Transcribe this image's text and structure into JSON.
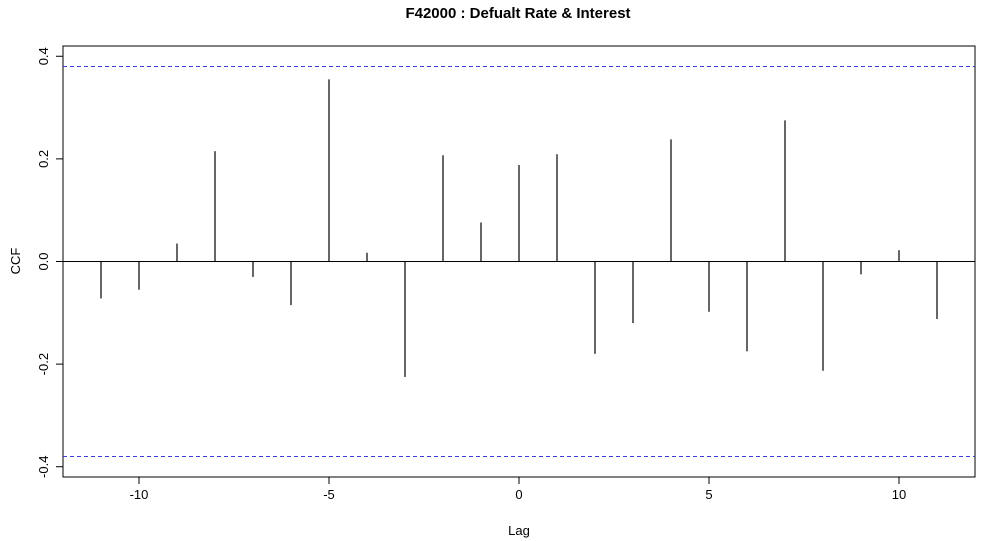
{
  "chart_data": {
    "type": "bar",
    "title": "F42000  : Defualt Rate & Interest",
    "xlabel": "Lag",
    "ylabel": "CCF",
    "xlim": [
      -12,
      12
    ],
    "ylim": [
      -0.42,
      0.42
    ],
    "x_ticks": [
      -10,
      -5,
      0,
      5,
      10
    ],
    "y_ticks": [
      -0.4,
      -0.2,
      0.0,
      0.2,
      0.4
    ],
    "x_tick_labels": [
      "-10",
      "-5",
      "0",
      "5",
      "10"
    ],
    "y_tick_labels": [
      "-0.4",
      "-0.2",
      "0.0",
      "0.2",
      "0.4"
    ],
    "lags": [
      -11,
      -10,
      -9,
      -8,
      -7,
      -6,
      -5,
      -4,
      -3,
      -2,
      -1,
      0,
      1,
      2,
      3,
      4,
      5,
      6,
      7,
      8,
      9,
      10,
      11
    ],
    "values": [
      -0.072,
      -0.055,
      0.035,
      0.215,
      -0.03,
      -0.085,
      0.355,
      0.017,
      -0.225,
      0.207,
      0.076,
      0.188,
      0.209,
      -0.18,
      -0.12,
      0.238,
      -0.098,
      -0.175,
      0.275,
      -0.213,
      -0.025,
      0.022,
      -0.112
    ],
    "confidence_limit": 0.38,
    "grid": false,
    "colors": {
      "spikes": "#000000",
      "confidence": "#3b3bd6",
      "zero_line": "#000000"
    }
  }
}
